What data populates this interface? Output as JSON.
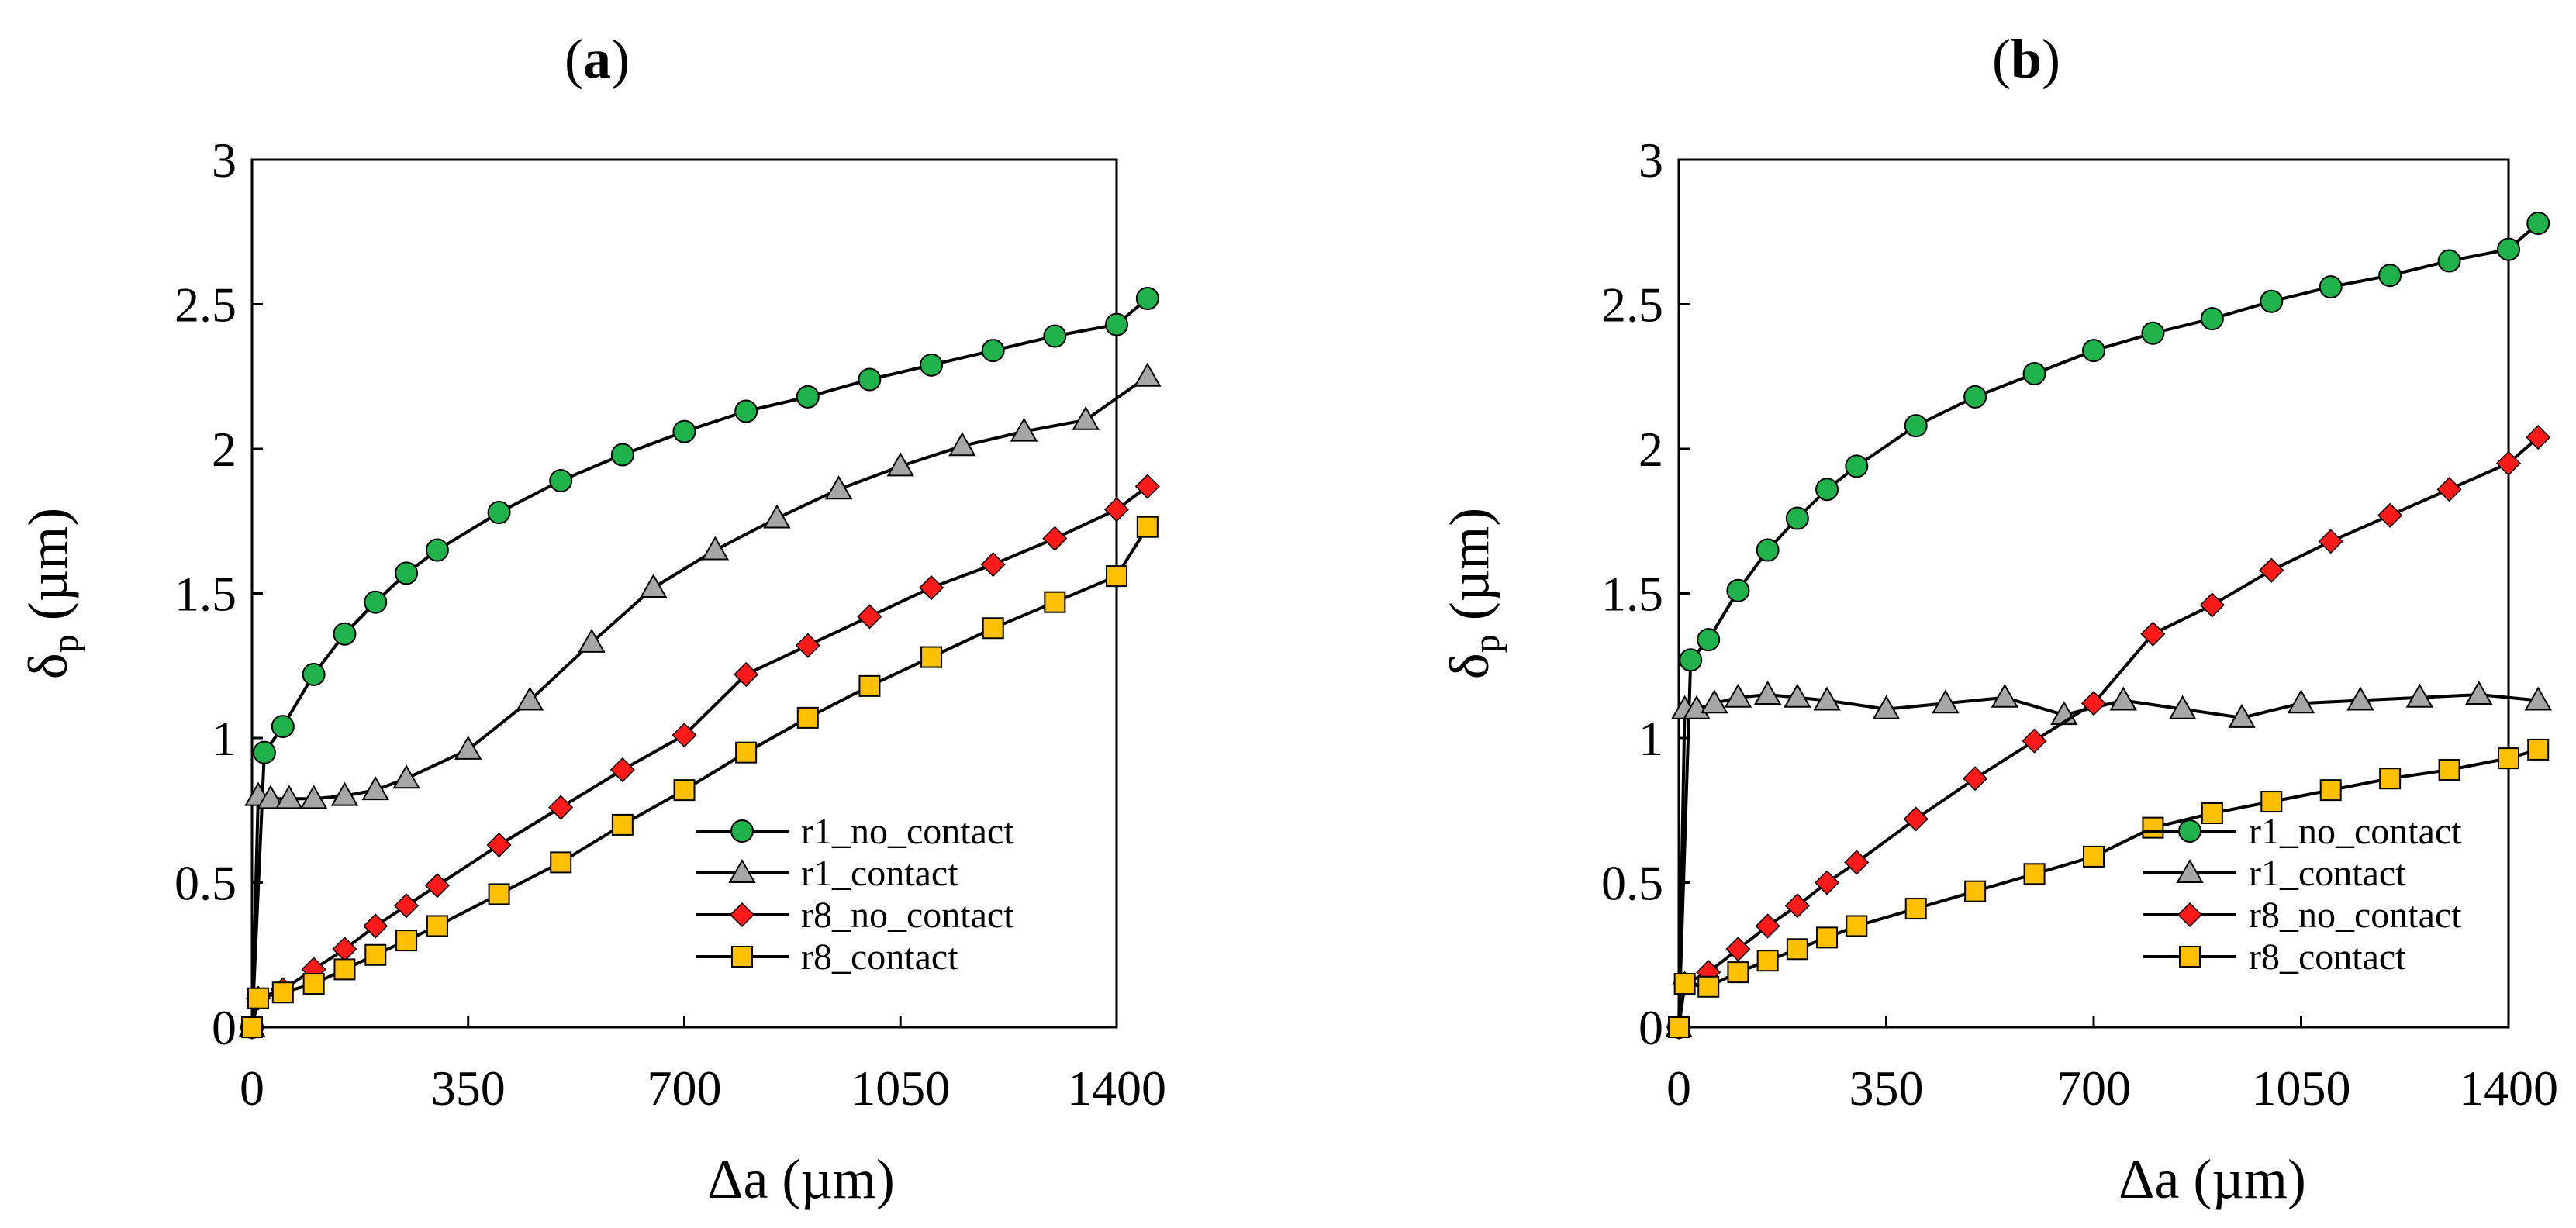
{
  "chart_data": [
    {
      "type": "line",
      "panel_label_open": "(",
      "panel_label_letter": "a",
      "panel_label_close": ")",
      "xlabel": "Δa (µm)",
      "ylabel_main": "δ",
      "ylabel_sub": "p",
      "ylabel_unit": " (µm)",
      "xlim": [
        0,
        1400
      ],
      "ylim": [
        0,
        3
      ],
      "xticks": [
        0,
        350,
        700,
        1050,
        1400
      ],
      "xtick_labels": [
        "0",
        "350",
        "700",
        "1050",
        "1400"
      ],
      "yticks": [
        0,
        0.5,
        1,
        1.5,
        2,
        2.5,
        3
      ],
      "ytick_labels": [
        "0",
        "0.5",
        "1",
        "1.5",
        "2",
        "2.5",
        "3"
      ],
      "legend_position": "bottom-right",
      "series": [
        {
          "name": "r1_no_contact",
          "marker": "circle",
          "color": "#1fb24a",
          "x": [
            0,
            20,
            50,
            100,
            150,
            200,
            250,
            300,
            400,
            500,
            600,
            700,
            800,
            900,
            1000,
            1100,
            1200,
            1300,
            1400,
            1450
          ],
          "y": [
            0,
            0.95,
            1.04,
            1.22,
            1.36,
            1.47,
            1.57,
            1.65,
            1.78,
            1.89,
            1.98,
            2.06,
            2.13,
            2.18,
            2.24,
            2.29,
            2.34,
            2.39,
            2.43,
            2.52
          ]
        },
        {
          "name": "r1_contact",
          "marker": "triangle",
          "color": "#a6a6a6",
          "x": [
            0,
            10,
            30,
            60,
            100,
            150,
            200,
            250,
            350,
            450,
            550,
            650,
            750,
            850,
            950,
            1050,
            1150,
            1250,
            1350,
            1450
          ],
          "y": [
            0,
            0.8,
            0.79,
            0.79,
            0.79,
            0.8,
            0.82,
            0.86,
            0.96,
            1.13,
            1.33,
            1.52,
            1.65,
            1.76,
            1.86,
            1.94,
            2.01,
            2.06,
            2.1,
            2.25
          ]
        },
        {
          "name": "r8_no_contact",
          "marker": "diamond",
          "color": "#ff1a1a",
          "x": [
            0,
            10,
            50,
            100,
            150,
            200,
            250,
            300,
            400,
            500,
            600,
            700,
            800,
            900,
            1000,
            1100,
            1200,
            1300,
            1400,
            1450
          ],
          "y": [
            0,
            0.1,
            0.13,
            0.2,
            0.27,
            0.35,
            0.42,
            0.49,
            0.63,
            0.76,
            0.89,
            1.01,
            1.22,
            1.32,
            1.42,
            1.52,
            1.6,
            1.69,
            1.79,
            1.87
          ]
        },
        {
          "name": "r8_contact",
          "marker": "square",
          "color": "#ffc000",
          "x": [
            0,
            10,
            50,
            100,
            150,
            200,
            250,
            300,
            400,
            500,
            600,
            700,
            800,
            900,
            1000,
            1100,
            1200,
            1300,
            1400,
            1450
          ],
          "y": [
            0,
            0.1,
            0.12,
            0.15,
            0.2,
            0.25,
            0.3,
            0.35,
            0.46,
            0.57,
            0.7,
            0.82,
            0.95,
            1.07,
            1.18,
            1.28,
            1.38,
            1.47,
            1.56,
            1.73
          ]
        }
      ]
    },
    {
      "type": "line",
      "panel_label_open": "(",
      "panel_label_letter": "b",
      "panel_label_close": ")",
      "xlabel": "Δa (µm)",
      "ylabel_main": "δ",
      "ylabel_sub": "p",
      "ylabel_unit": " (µm)",
      "xlim": [
        0,
        1400
      ],
      "ylim": [
        0,
        3
      ],
      "xticks": [
        0,
        350,
        700,
        1050,
        1400
      ],
      "xtick_labels": [
        "0",
        "350",
        "700",
        "1050",
        "1400"
      ],
      "yticks": [
        0,
        0.5,
        1,
        1.5,
        2,
        2.5,
        3
      ],
      "ytick_labels": [
        "0",
        "0.5",
        "1",
        "1.5",
        "2",
        "2.5",
        "3"
      ],
      "legend_position": "bottom-right",
      "series": [
        {
          "name": "r1_no_contact",
          "marker": "circle",
          "color": "#1fb24a",
          "x": [
            0,
            20,
            50,
            100,
            150,
            200,
            250,
            300,
            400,
            500,
            600,
            700,
            800,
            900,
            1000,
            1100,
            1200,
            1300,
            1400,
            1450
          ],
          "y": [
            0,
            1.27,
            1.34,
            1.51,
            1.65,
            1.76,
            1.86,
            1.94,
            2.08,
            2.18,
            2.26,
            2.34,
            2.4,
            2.45,
            2.51,
            2.56,
            2.6,
            2.65,
            2.69,
            2.78
          ]
        },
        {
          "name": "r1_contact",
          "marker": "triangle",
          "color": "#a6a6a6",
          "x": [
            0,
            10,
            30,
            60,
            100,
            150,
            200,
            250,
            350,
            450,
            550,
            650,
            750,
            850,
            950,
            1050,
            1150,
            1250,
            1350,
            1450
          ],
          "y": [
            0,
            1.1,
            1.1,
            1.12,
            1.14,
            1.15,
            1.14,
            1.13,
            1.1,
            1.12,
            1.14,
            1.08,
            1.13,
            1.1,
            1.07,
            1.12,
            1.13,
            1.14,
            1.15,
            1.13
          ]
        },
        {
          "name": "r8_no_contact",
          "marker": "diamond",
          "color": "#ff1a1a",
          "x": [
            0,
            10,
            50,
            100,
            150,
            200,
            250,
            300,
            400,
            500,
            600,
            700,
            800,
            900,
            1000,
            1100,
            1200,
            1300,
            1400,
            1450
          ],
          "y": [
            0,
            0.15,
            0.19,
            0.27,
            0.35,
            0.42,
            0.5,
            0.57,
            0.72,
            0.86,
            0.99,
            1.12,
            1.36,
            1.46,
            1.58,
            1.68,
            1.77,
            1.86,
            1.95,
            2.04
          ]
        },
        {
          "name": "r8_contact",
          "marker": "square",
          "color": "#ffc000",
          "x": [
            0,
            10,
            50,
            100,
            150,
            200,
            250,
            300,
            400,
            500,
            600,
            700,
            800,
            900,
            1000,
            1100,
            1200,
            1300,
            1400,
            1450
          ],
          "y": [
            0,
            0.15,
            0.14,
            0.19,
            0.23,
            0.27,
            0.31,
            0.35,
            0.41,
            0.47,
            0.53,
            0.59,
            0.69,
            0.74,
            0.78,
            0.82,
            0.86,
            0.89,
            0.93,
            0.96
          ]
        }
      ]
    }
  ]
}
